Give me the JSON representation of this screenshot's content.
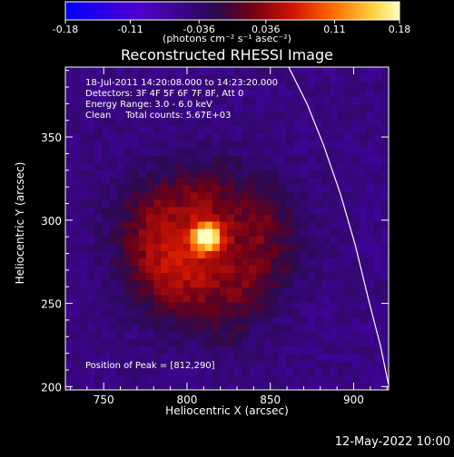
{
  "colorbar": {
    "tick_labels": [
      "-0.18",
      "-0.11",
      "-0.036",
      "0.036",
      "0.11",
      "0.18"
    ],
    "tick_values": [
      -0.18,
      -0.11,
      -0.036,
      0.036,
      0.11,
      0.18
    ],
    "range": [
      -0.18,
      0.18
    ],
    "units": "(photons cm⁻² s⁻¹ asec⁻²)"
  },
  "title": "Reconstructed RHESSI Image",
  "info": {
    "time": "18-Jul-2011 14:20:08.000 to 14:23:20.000",
    "detectors": "Detectors: 3F 4F 5F 6F 7F 8F, Att 0",
    "energy": "Energy Range: 3.0 - 6.0 keV",
    "clean": "Clean     Total counts: 5.67E+03"
  },
  "peak_label": "Position of Peak = [812,290]",
  "footer_timestamp": "12-May-2022 10:00",
  "colors": {
    "background": "#000000",
    "axes": "#ffffff",
    "limb": "#ffffff",
    "colormap": [
      "#0000ff",
      "#5000d0",
      "#2a0a50",
      "#8a0010",
      "#e02000",
      "#ff8800",
      "#ffe060",
      "#ffffff"
    ]
  },
  "chart_data": {
    "type": "heatmap",
    "title": "Reconstructed RHESSI Image",
    "xlabel": "Heliocentric X (arcsec)",
    "ylabel": "Heliocentric Y (arcsec)",
    "xlim": [
      727,
      921
    ],
    "ylim": [
      198,
      392
    ],
    "x_ticks": [
      750,
      800,
      850,
      900
    ],
    "y_ticks": [
      200,
      250,
      300,
      350
    ],
    "peak": {
      "x": 812,
      "y": 290,
      "value": 0.18
    },
    "zrange": [
      -0.18,
      0.18
    ],
    "source_blobs": [
      {
        "x": 812,
        "y": 290,
        "sigma": 6,
        "amp": 0.18
      },
      {
        "x": 808,
        "y": 287,
        "sigma": 30,
        "amp": 0.065
      },
      {
        "x": 784,
        "y": 280,
        "sigma": 18,
        "amp": 0.04
      },
      {
        "x": 845,
        "y": 285,
        "sigma": 18,
        "amp": 0.035
      },
      {
        "x": 795,
        "y": 262,
        "sigma": 16,
        "amp": 0.035
      },
      {
        "x": 832,
        "y": 255,
        "sigma": 15,
        "amp": 0.03
      },
      {
        "x": 808,
        "y": 318,
        "sigma": 14,
        "amp": 0.03
      },
      {
        "x": 778,
        "y": 305,
        "sigma": 14,
        "amp": 0.025
      },
      {
        "x": 850,
        "y": 310,
        "sigma": 12,
        "amp": 0.02
      },
      {
        "x": 820,
        "y": 233,
        "sigma": 10,
        "amp": 0.02
      }
    ],
    "background_level": -0.05,
    "limb_curve": {
      "points": [
        [
          861,
          392
        ],
        [
          872,
          370
        ],
        [
          882,
          345
        ],
        [
          892,
          316
        ],
        [
          901,
          285
        ],
        [
          909,
          252
        ],
        [
          916,
          225
        ],
        [
          921,
          201
        ]
      ]
    }
  }
}
